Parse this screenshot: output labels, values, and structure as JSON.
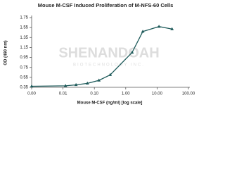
{
  "chart_data": {
    "type": "line",
    "title": "Mouse M-CSF Induced Proliferation of M-NFS-60 Cells",
    "x_label": "Mouse M-CSF (ng/ml) [log scale]",
    "y_label": "OD (490 nm)",
    "watermark": [
      "SHENANDOAH",
      "BIOTECHNOLOGY INC."
    ],
    "x": [
      0.001,
      0.012,
      0.026,
      0.06,
      0.14,
      0.32,
      1.6,
      3.5,
      11.5,
      30
    ],
    "series": [
      {
        "name": "OD",
        "color": "#1f5b5b",
        "values": [
          0.37,
          0.38,
          0.4,
          0.43,
          0.49,
          0.6,
          1.05,
          1.47,
          1.57,
          1.52
        ]
      }
    ],
    "xscale": "log",
    "xlim": [
      0.001,
      100
    ],
    "xticks": [
      {
        "value": 0.001,
        "label": "0.00"
      },
      {
        "value": 0.01,
        "label": "0.01"
      },
      {
        "value": 0.1,
        "label": "0.10"
      },
      {
        "value": 1,
        "label": "1.00"
      },
      {
        "value": 10,
        "label": "10.00"
      },
      {
        "value": 100,
        "label": "100.00"
      }
    ],
    "ylim": [
      0.35,
      1.75
    ],
    "yticks": [
      0.35,
      0.55,
      0.75,
      0.95,
      1.15,
      1.35,
      1.55,
      1.75
    ],
    "grid": false
  }
}
